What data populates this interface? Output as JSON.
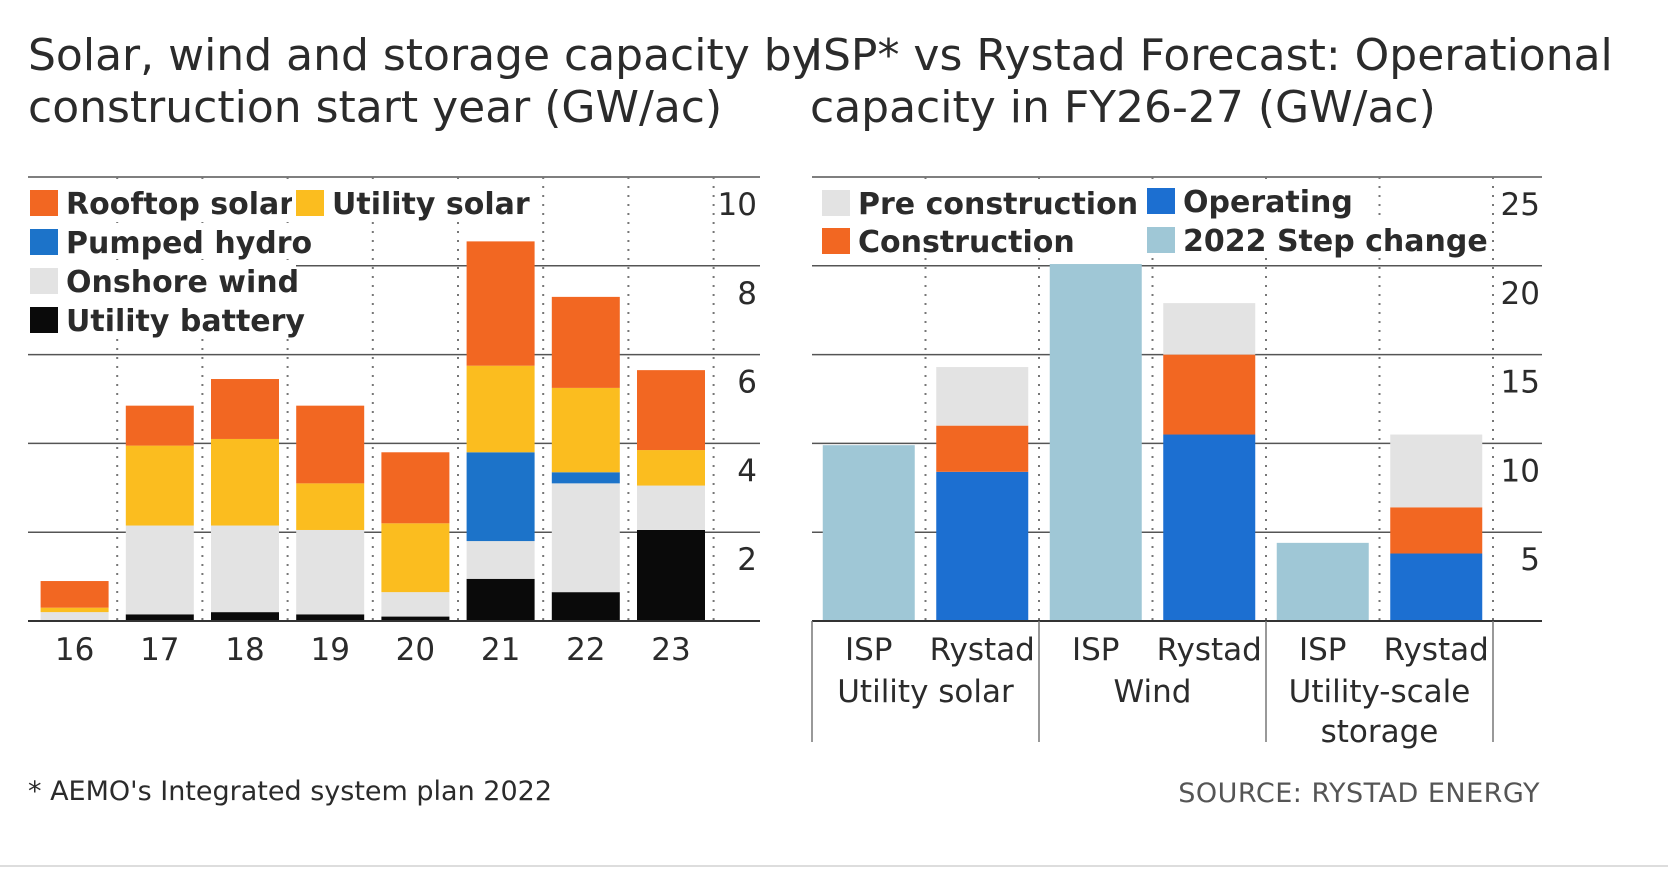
{
  "colors": {
    "rooftop_solar": "#f26722",
    "utility_solar": "#fbbd1f",
    "pumped_hydro": "#1c73c9",
    "onshore_wind": "#e3e3e3",
    "utility_battery": "#0a0a0a",
    "pre_construction": "#e3e3e3",
    "construction": "#f26722",
    "operating": "#1c6fd1",
    "step_change": "#9fc7d6"
  },
  "left_title": [
    "Solar, wind and storage capacity by",
    "construction start year (GW/ac)"
  ],
  "right_title": [
    "ISP* vs Rystad Forecast: Operational",
    "capacity in FY26-27 (GW/ac)"
  ],
  "footnote": "* AEMO's Integrated system plan 2022",
  "source": "SOURCE: RYSTAD ENERGY",
  "chart_data": [
    {
      "type": "bar",
      "stacked": true,
      "title": "Solar, wind and storage capacity by construction start year (GW/ac)",
      "categories": [
        "16",
        "17",
        "18",
        "19",
        "20",
        "21",
        "22",
        "23"
      ],
      "ylim": [
        0,
        10
      ],
      "yticks": [
        2,
        4,
        6,
        8,
        10
      ],
      "y_axis_side": "right",
      "grid": true,
      "legend_position": "top-left",
      "series": [
        {
          "name": "Utility battery",
          "color_key": "utility_battery",
          "values": [
            0,
            0.15,
            0.2,
            0.15,
            0.1,
            0.95,
            0.65,
            2.05
          ]
        },
        {
          "name": "Onshore wind",
          "color_key": "onshore_wind",
          "values": [
            0.2,
            2.0,
            1.95,
            1.9,
            0.55,
            0.85,
            2.45,
            1.0
          ]
        },
        {
          "name": "Pumped hydro",
          "color_key": "pumped_hydro",
          "values": [
            0,
            0,
            0,
            0,
            0,
            2.0,
            0.25,
            0
          ]
        },
        {
          "name": "Utility solar",
          "color_key": "utility_solar",
          "values": [
            0.1,
            1.8,
            1.95,
            1.05,
            1.55,
            1.95,
            1.9,
            0.8
          ]
        },
        {
          "name": "Rooftop solar",
          "color_key": "rooftop_solar",
          "values": [
            0.6,
            0.9,
            1.35,
            1.75,
            1.6,
            2.8,
            2.05,
            1.8
          ]
        }
      ],
      "legend_rows": [
        [
          "Rooftop solar",
          "Utility solar"
        ],
        [
          "Pumped hydro"
        ],
        [
          "Onshore wind"
        ],
        [
          "Utility battery"
        ]
      ]
    },
    {
      "type": "bar",
      "stacked": true,
      "title": "ISP* vs Rystad Forecast: Operational capacity in FY26-27 (GW/ac)",
      "categories": [
        "ISP",
        "Rystad",
        "ISP",
        "Rystad",
        "ISP",
        "Rystad"
      ],
      "groups": [
        {
          "label": [
            "Utility solar"
          ]
        },
        {
          "label": [
            "Wind"
          ]
        },
        {
          "label": [
            "Utility-scale",
            "storage"
          ]
        }
      ],
      "ylim": [
        0,
        25
      ],
      "yticks": [
        5,
        10,
        15,
        20,
        25
      ],
      "y_axis_side": "right",
      "grid": true,
      "legend_position": "top-left",
      "series": [
        {
          "name": "Operating",
          "color_key": "operating",
          "values": [
            0,
            8.4,
            0,
            10.5,
            0,
            3.8
          ]
        },
        {
          "name": "Construction",
          "color_key": "construction",
          "values": [
            0,
            2.6,
            0,
            4.5,
            0,
            2.6
          ]
        },
        {
          "name": "Pre construction",
          "color_key": "pre_construction",
          "values": [
            0,
            3.3,
            0,
            2.9,
            0,
            4.1
          ]
        },
        {
          "name": "2022 Step change",
          "color_key": "step_change",
          "values": [
            9.9,
            0,
            20.1,
            0,
            4.4,
            0
          ]
        }
      ],
      "legend_rows": [
        [
          "Pre construction",
          "Operating"
        ],
        [
          "Construction",
          "2022 Step change"
        ]
      ]
    }
  ]
}
